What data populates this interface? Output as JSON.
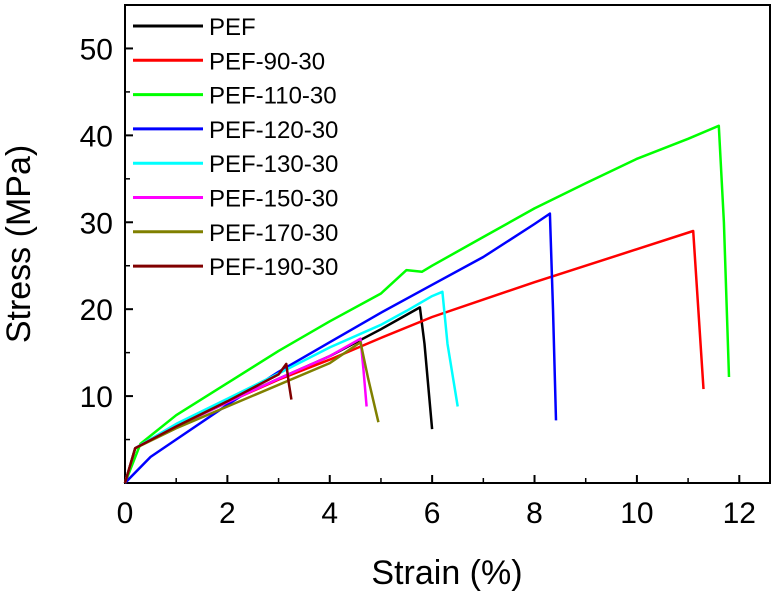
{
  "chart_data": {
    "type": "line",
    "xlabel": "Strain (%)",
    "ylabel": "Stress (MPa)",
    "xlim": [
      0,
      12.6
    ],
    "ylim": [
      0,
      55
    ],
    "xticks": [
      0,
      2,
      4,
      6,
      8,
      10,
      12
    ],
    "yticks": [
      10,
      20,
      30,
      40,
      50
    ],
    "grid": false,
    "legend_position": "top-left",
    "series": [
      {
        "name": "PEF",
        "color": "#000000",
        "points": [
          [
            0,
            0
          ],
          [
            0.2,
            4.0
          ],
          [
            1,
            6.5
          ],
          [
            2,
            9.3
          ],
          [
            3,
            12.0
          ],
          [
            4,
            14.6
          ],
          [
            5,
            17.7
          ],
          [
            5.76,
            20.2
          ],
          [
            5.85,
            16
          ],
          [
            6.0,
            6.2
          ]
        ]
      },
      {
        "name": "PEF-90-30",
        "color": "#ff0000",
        "points": [
          [
            0,
            0
          ],
          [
            0.2,
            4.0
          ],
          [
            1,
            6.6
          ],
          [
            2,
            9.3
          ],
          [
            3,
            11.9
          ],
          [
            4,
            14.2
          ],
          [
            5,
            16.7
          ],
          [
            6,
            19.1
          ],
          [
            7,
            21.1
          ],
          [
            8,
            23.1
          ],
          [
            9,
            25.0
          ],
          [
            10,
            26.9
          ],
          [
            11.1,
            29.0
          ],
          [
            11.2,
            20
          ],
          [
            11.3,
            10.8
          ]
        ]
      },
      {
        "name": "PEF-110-30",
        "color": "#00ff00",
        "points": [
          [
            0,
            0
          ],
          [
            0.3,
            4.5
          ],
          [
            1,
            7.8
          ],
          [
            2,
            11.5
          ],
          [
            3,
            15.2
          ],
          [
            4,
            18.6
          ],
          [
            5,
            21.8
          ],
          [
            5.5,
            24.5
          ],
          [
            5.8,
            24.3
          ],
          [
            6,
            25
          ],
          [
            7,
            28.3
          ],
          [
            8,
            31.6
          ],
          [
            9,
            34.5
          ],
          [
            10,
            37.3
          ],
          [
            11,
            39.6
          ],
          [
            11.6,
            41.1
          ],
          [
            11.7,
            30
          ],
          [
            11.8,
            12.2
          ]
        ]
      },
      {
        "name": "PEF-120-30",
        "color": "#0000ff",
        "points": [
          [
            0,
            0
          ],
          [
            0.5,
            3.0
          ],
          [
            1,
            5.0
          ],
          [
            2,
            9.0
          ],
          [
            3,
            12.8
          ],
          [
            4,
            16.2
          ],
          [
            5,
            19.6
          ],
          [
            6,
            22.8
          ],
          [
            7,
            26.0
          ],
          [
            8,
            29.8
          ],
          [
            8.3,
            31.0
          ],
          [
            8.36,
            20
          ],
          [
            8.42,
            7.2
          ]
        ]
      },
      {
        "name": "PEF-130-30",
        "color": "#00ffff",
        "points": [
          [
            0,
            0
          ],
          [
            0.2,
            4.0
          ],
          [
            1,
            6.8
          ],
          [
            2,
            9.7
          ],
          [
            3,
            12.6
          ],
          [
            4,
            15.6
          ],
          [
            5,
            18.2
          ],
          [
            5.5,
            19.8
          ],
          [
            6,
            21.5
          ],
          [
            6.2,
            22.0
          ],
          [
            6.3,
            16
          ],
          [
            6.5,
            8.8
          ]
        ]
      },
      {
        "name": "PEF-150-30",
        "color": "#ff00ff",
        "points": [
          [
            0,
            0
          ],
          [
            0.2,
            4.0
          ],
          [
            1,
            6.5
          ],
          [
            2,
            9.3
          ],
          [
            3,
            12.0
          ],
          [
            4,
            14.6
          ],
          [
            4.6,
            16.6
          ],
          [
            4.66,
            13
          ],
          [
            4.72,
            8.8
          ]
        ]
      },
      {
        "name": "PEF-170-30",
        "color": "#808000",
        "points": [
          [
            0,
            0
          ],
          [
            0.2,
            4.0
          ],
          [
            1,
            6.3
          ],
          [
            2,
            8.8
          ],
          [
            3,
            11.3
          ],
          [
            4,
            13.8
          ],
          [
            4.6,
            16.2
          ],
          [
            4.75,
            12
          ],
          [
            4.95,
            7.0
          ]
        ]
      },
      {
        "name": "PEF-190-30",
        "color": "#800000",
        "points": [
          [
            0,
            0
          ],
          [
            0.2,
            4.0
          ],
          [
            1,
            6.5
          ],
          [
            2,
            9.4
          ],
          [
            3,
            12.5
          ],
          [
            3.15,
            13.7
          ],
          [
            3.2,
            11.5
          ],
          [
            3.25,
            9.6
          ]
        ]
      }
    ]
  }
}
